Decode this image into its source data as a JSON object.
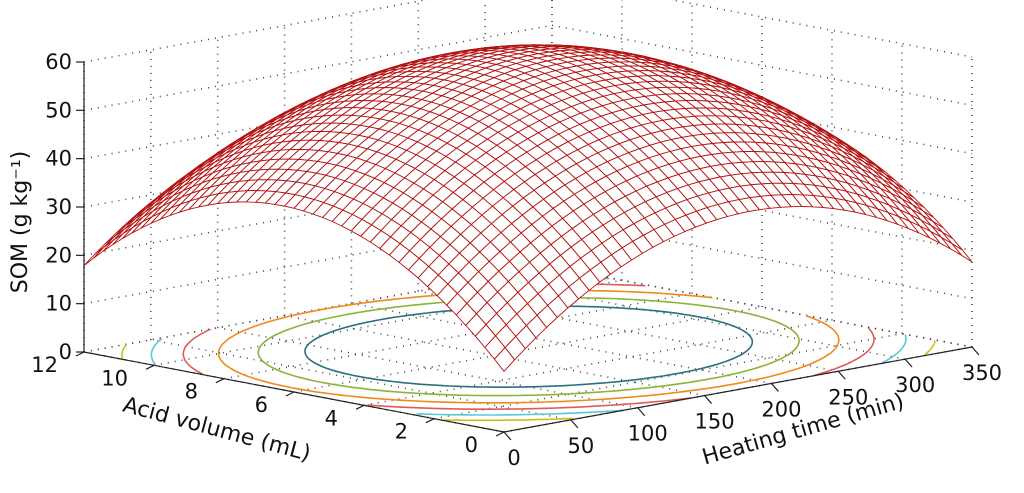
{
  "chart_data": {
    "type": "surface3d",
    "zlabel": "SOM (g kg⁻¹)",
    "xlabel": "Heating time (min)",
    "ylabel": "Acid volume (mL)",
    "x_ticks": [
      "0",
      "50",
      "100",
      "150",
      "200",
      "250",
      "300",
      "350"
    ],
    "y_ticks": [
      "0",
      "2",
      "4",
      "6",
      "8",
      "10",
      "12"
    ],
    "z_ticks": [
      "0",
      "10",
      "20",
      "30",
      "40",
      "50",
      "60"
    ],
    "xlim": [
      0,
      350
    ],
    "ylim": [
      0,
      12
    ],
    "zlim": [
      0,
      60
    ],
    "grid": true,
    "surface_color": "#b31212",
    "surface_points": [
      {
        "x": 0,
        "y": 0,
        "z": 11
      },
      {
        "x": 350,
        "y": 0,
        "z": 15
      },
      {
        "x": 350,
        "y": 12,
        "z": 17
      },
      {
        "x": 0,
        "y": 12,
        "z": 17
      },
      {
        "x": 0,
        "y": 6,
        "z": 40
      },
      {
        "x": 175,
        "y": 0,
        "z": 40
      },
      {
        "x": 350,
        "y": 6,
        "z": 46
      },
      {
        "x": 175,
        "y": 12,
        "z": 43
      },
      {
        "x": 200,
        "y": 7,
        "z": 53
      }
    ],
    "contours": [
      {
        "color": "#2c6f7e"
      },
      {
        "color": "#8db33a"
      },
      {
        "color": "#f08a1c"
      },
      {
        "color": "#e05a5a"
      },
      {
        "color": "#5ac8d8"
      },
      {
        "color": "#c8c020"
      }
    ]
  }
}
